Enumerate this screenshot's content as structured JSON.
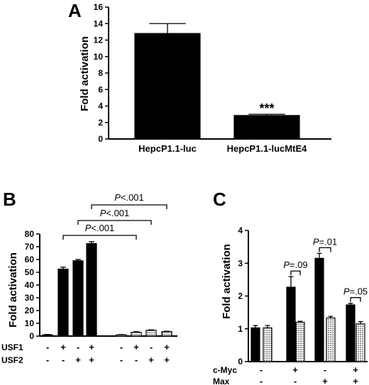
{
  "chart_data": [
    {
      "panel": "A",
      "type": "bar",
      "ylabel": "Fold activation",
      "ylim": [
        0,
        16
      ],
      "yticks": [
        0,
        2,
        4,
        6,
        8,
        10,
        12,
        14,
        16
      ],
      "categories": [
        "HepcP1.1-luc",
        "HepcP1.1-lucMtE4"
      ],
      "values": [
        12.8,
        2.85
      ],
      "errors": [
        1.2,
        0.15
      ],
      "annotations": [
        {
          "category": 1,
          "text": "***"
        }
      ]
    },
    {
      "panel": "B",
      "type": "bar",
      "ylabel": "Fold activation",
      "ylim": [
        0,
        80
      ],
      "yticks": [
        0,
        10,
        20,
        30,
        40,
        50,
        60,
        70,
        80
      ],
      "conditions": [
        {
          "label": "USF1",
          "signs": [
            "-",
            "+",
            "-",
            "+",
            "-",
            "+",
            "-",
            "+"
          ]
        },
        {
          "label": "USF2",
          "signs": [
            "-",
            "-",
            "+",
            "+",
            "-",
            "-",
            "+",
            "+"
          ]
        }
      ],
      "series": [
        {
          "fill": "solid",
          "values": [
            1.0,
            52.5,
            59.0,
            72.5
          ],
          "errors": [
            0.3,
            1.5,
            1.0,
            1.5
          ]
        },
        {
          "fill": "dotted",
          "values": [
            1.0,
            3.0,
            4.5,
            3.5
          ],
          "errors": [
            0.2,
            0.4,
            0.4,
            0.3
          ]
        }
      ],
      "comparisons": [
        {
          "from": 1,
          "to": 5,
          "text_prefix": "P",
          "text_suffix": "<.001"
        },
        {
          "from": 2,
          "to": 6,
          "text_prefix": "P",
          "text_suffix": "<.001"
        },
        {
          "from": 3,
          "to": 7,
          "text_prefix": "P",
          "text_suffix": "<.001"
        }
      ]
    },
    {
      "panel": "C",
      "type": "bar",
      "ylabel": "Fold activation",
      "ylim": [
        0,
        4
      ],
      "yticks": [
        0,
        1,
        2,
        3,
        4
      ],
      "conditions": [
        {
          "label": "c-Myc",
          "signs": [
            "-",
            "+",
            "-",
            "+"
          ]
        },
        {
          "label": "Max",
          "signs": [
            "-",
            "-",
            "+",
            "+"
          ]
        }
      ],
      "series": [
        {
          "fill": "solid",
          "values": [
            1.03,
            2.27,
            3.15,
            1.73
          ],
          "errors": [
            0.07,
            0.32,
            0.15,
            0.05
          ]
        },
        {
          "fill": "dotted",
          "values": [
            1.03,
            1.2,
            1.33,
            1.15
          ],
          "errors": [
            0.07,
            0.03,
            0.05,
            0.07
          ]
        }
      ],
      "comparisons": [
        {
          "group": 1,
          "text_prefix": "P",
          "text_suffix": "=.09"
        },
        {
          "group": 2,
          "text_prefix": "P",
          "text_suffix": "=.01"
        },
        {
          "group": 3,
          "text_prefix": "P",
          "text_suffix": "=.05"
        }
      ]
    }
  ]
}
